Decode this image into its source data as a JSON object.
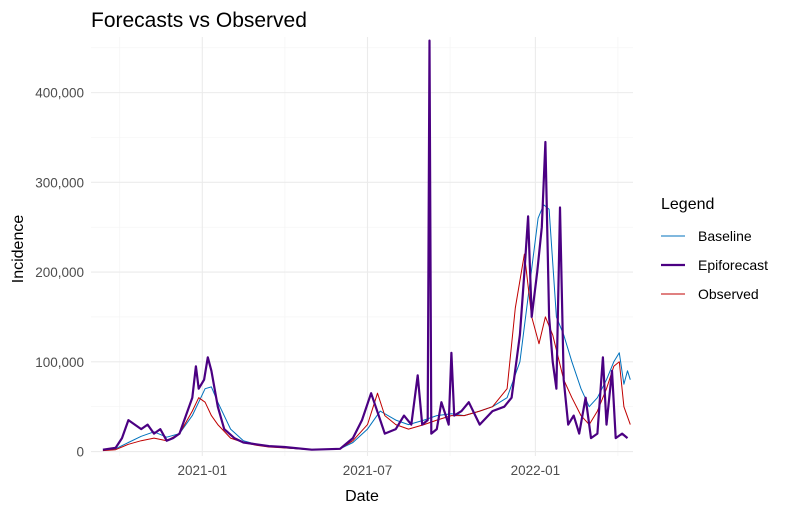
{
  "chart_data": {
    "type": "line",
    "title": "Forecasts vs Observed",
    "xlabel": "Date",
    "ylabel": "Incidence",
    "x_ticks": [
      "2021-01",
      "2021-07",
      "2022-01"
    ],
    "x_tick_dates": [
      "2021-01-01",
      "2021-07-01",
      "2022-01-01"
    ],
    "xlim": [
      "2020-09-01",
      "2022-04-18"
    ],
    "y_ticks": [
      0,
      100000,
      200000,
      300000,
      400000
    ],
    "y_tick_labels": [
      "0",
      "100,000",
      "200,000",
      "300,000",
      "400,000"
    ],
    "ylim": [
      -5000,
      462000
    ],
    "grid": true,
    "legend": {
      "title": "Legend",
      "position": "right"
    },
    "series": [
      {
        "name": "Baseline",
        "color": "#0072BD",
        "points": [
          [
            "2020-09-14",
            1500
          ],
          [
            "2020-09-28",
            3000
          ],
          [
            "2020-10-12",
            10000
          ],
          [
            "2020-10-26",
            17000
          ],
          [
            "2020-11-09",
            22000
          ],
          [
            "2020-11-23",
            16000
          ],
          [
            "2020-12-07",
            20000
          ],
          [
            "2020-12-21",
            40000
          ],
          [
            "2021-01-04",
            70000
          ],
          [
            "2021-01-11",
            72000
          ],
          [
            "2021-01-18",
            55000
          ],
          [
            "2021-02-01",
            25000
          ],
          [
            "2021-02-15",
            12000
          ],
          [
            "2021-03-01",
            8000
          ],
          [
            "2021-03-15",
            6000
          ],
          [
            "2021-04-01",
            4000
          ],
          [
            "2021-05-01",
            2000
          ],
          [
            "2021-06-01",
            3000
          ],
          [
            "2021-06-15",
            10000
          ],
          [
            "2021-07-01",
            25000
          ],
          [
            "2021-07-15",
            45000
          ],
          [
            "2021-08-01",
            35000
          ],
          [
            "2021-08-15",
            30000
          ],
          [
            "2021-09-01",
            35000
          ],
          [
            "2021-09-15",
            40000
          ],
          [
            "2021-10-01",
            42000
          ],
          [
            "2021-10-15",
            40000
          ],
          [
            "2021-11-01",
            45000
          ],
          [
            "2021-11-15",
            50000
          ],
          [
            "2021-12-01",
            60000
          ],
          [
            "2021-12-15",
            100000
          ],
          [
            "2021-12-25",
            180000
          ],
          [
            "2022-01-04",
            260000
          ],
          [
            "2022-01-10",
            275000
          ],
          [
            "2022-01-16",
            270000
          ],
          [
            "2022-01-24",
            150000
          ],
          [
            "2022-02-01",
            130000
          ],
          [
            "2022-02-10",
            100000
          ],
          [
            "2022-02-20",
            70000
          ],
          [
            "2022-03-01",
            50000
          ],
          [
            "2022-03-10",
            60000
          ],
          [
            "2022-03-20",
            80000
          ],
          [
            "2022-03-28",
            100000
          ],
          [
            "2022-04-03",
            110000
          ],
          [
            "2022-04-08",
            75000
          ],
          [
            "2022-04-12",
            90000
          ],
          [
            "2022-04-15",
            80000
          ]
        ]
      },
      {
        "name": "Epiforecast",
        "color": "#4B0082",
        "points": [
          [
            "2020-09-14",
            2000
          ],
          [
            "2020-09-28",
            4000
          ],
          [
            "2020-10-05",
            15000
          ],
          [
            "2020-10-12",
            35000
          ],
          [
            "2020-10-19",
            30000
          ],
          [
            "2020-10-26",
            25000
          ],
          [
            "2020-11-02",
            30000
          ],
          [
            "2020-11-09",
            20000
          ],
          [
            "2020-11-16",
            25000
          ],
          [
            "2020-11-23",
            12000
          ],
          [
            "2020-11-30",
            15000
          ],
          [
            "2020-12-07",
            20000
          ],
          [
            "2020-12-14",
            40000
          ],
          [
            "2020-12-21",
            60000
          ],
          [
            "2020-12-25",
            95000
          ],
          [
            "2020-12-28",
            70000
          ],
          [
            "2021-01-03",
            80000
          ],
          [
            "2021-01-07",
            105000
          ],
          [
            "2021-01-11",
            90000
          ],
          [
            "2021-01-18",
            50000
          ],
          [
            "2021-01-25",
            25000
          ],
          [
            "2021-02-05",
            15000
          ],
          [
            "2021-02-15",
            10000
          ],
          [
            "2021-03-01",
            8000
          ],
          [
            "2021-03-15",
            6000
          ],
          [
            "2021-04-01",
            5000
          ],
          [
            "2021-05-01",
            2000
          ],
          [
            "2021-06-01",
            3000
          ],
          [
            "2021-06-15",
            15000
          ],
          [
            "2021-06-25",
            35000
          ],
          [
            "2021-07-05",
            65000
          ],
          [
            "2021-07-10",
            50000
          ],
          [
            "2021-07-20",
            20000
          ],
          [
            "2021-08-01",
            25000
          ],
          [
            "2021-08-10",
            40000
          ],
          [
            "2021-08-18",
            30000
          ],
          [
            "2021-08-25",
            85000
          ],
          [
            "2021-08-30",
            30000
          ],
          [
            "2021-09-05",
            35000
          ],
          [
            "2021-09-07",
            458000
          ],
          [
            "2021-09-09",
            20000
          ],
          [
            "2021-09-15",
            25000
          ],
          [
            "2021-09-20",
            55000
          ],
          [
            "2021-09-28",
            30000
          ],
          [
            "2021-10-01",
            110000
          ],
          [
            "2021-10-04",
            40000
          ],
          [
            "2021-10-12",
            45000
          ],
          [
            "2021-10-20",
            55000
          ],
          [
            "2021-11-01",
            30000
          ],
          [
            "2021-11-15",
            45000
          ],
          [
            "2021-11-28",
            50000
          ],
          [
            "2021-12-06",
            60000
          ],
          [
            "2021-12-15",
            130000
          ],
          [
            "2021-12-20",
            200000
          ],
          [
            "2021-12-24",
            262000
          ],
          [
            "2021-12-28",
            150000
          ],
          [
            "2022-01-03",
            200000
          ],
          [
            "2022-01-08",
            250000
          ],
          [
            "2022-01-12",
            345000
          ],
          [
            "2022-01-16",
            150000
          ],
          [
            "2022-01-20",
            100000
          ],
          [
            "2022-01-24",
            70000
          ],
          [
            "2022-01-28",
            272000
          ],
          [
            "2022-02-01",
            80000
          ],
          [
            "2022-02-06",
            30000
          ],
          [
            "2022-02-12",
            40000
          ],
          [
            "2022-02-18",
            20000
          ],
          [
            "2022-02-25",
            60000
          ],
          [
            "2022-03-03",
            15000
          ],
          [
            "2022-03-10",
            20000
          ],
          [
            "2022-03-16",
            105000
          ],
          [
            "2022-03-20",
            30000
          ],
          [
            "2022-03-26",
            90000
          ],
          [
            "2022-03-30",
            15000
          ],
          [
            "2022-04-06",
            20000
          ],
          [
            "2022-04-12",
            15000
          ]
        ]
      },
      {
        "name": "Observed",
        "color": "#C00000",
        "points": [
          [
            "2020-09-14",
            1000
          ],
          [
            "2020-09-28",
            2000
          ],
          [
            "2020-10-12",
            8000
          ],
          [
            "2020-10-26",
            12000
          ],
          [
            "2020-11-09",
            15000
          ],
          [
            "2020-11-23",
            12000
          ],
          [
            "2020-12-07",
            20000
          ],
          [
            "2020-12-21",
            45000
          ],
          [
            "2020-12-28",
            60000
          ],
          [
            "2021-01-04",
            55000
          ],
          [
            "2021-01-11",
            40000
          ],
          [
            "2021-01-18",
            30000
          ],
          [
            "2021-02-01",
            15000
          ],
          [
            "2021-02-15",
            10000
          ],
          [
            "2021-03-01",
            7000
          ],
          [
            "2021-03-15",
            5000
          ],
          [
            "2021-04-01",
            4000
          ],
          [
            "2021-05-01",
            2000
          ],
          [
            "2021-06-01",
            3000
          ],
          [
            "2021-06-15",
            12000
          ],
          [
            "2021-07-01",
            30000
          ],
          [
            "2021-07-12",
            65000
          ],
          [
            "2021-07-20",
            40000
          ],
          [
            "2021-08-01",
            30000
          ],
          [
            "2021-08-15",
            25000
          ],
          [
            "2021-09-01",
            30000
          ],
          [
            "2021-09-15",
            35000
          ],
          [
            "2021-10-01",
            40000
          ],
          [
            "2021-10-15",
            40000
          ],
          [
            "2021-11-01",
            45000
          ],
          [
            "2021-11-15",
            50000
          ],
          [
            "2021-12-01",
            70000
          ],
          [
            "2021-12-10",
            160000
          ],
          [
            "2021-12-20",
            220000
          ],
          [
            "2021-12-28",
            150000
          ],
          [
            "2022-01-05",
            120000
          ],
          [
            "2022-01-12",
            150000
          ],
          [
            "2022-01-20",
            130000
          ],
          [
            "2022-02-01",
            80000
          ],
          [
            "2022-02-10",
            60000
          ],
          [
            "2022-02-20",
            40000
          ],
          [
            "2022-03-01",
            30000
          ],
          [
            "2022-03-10",
            45000
          ],
          [
            "2022-03-20",
            70000
          ],
          [
            "2022-03-28",
            95000
          ],
          [
            "2022-04-03",
            100000
          ],
          [
            "2022-04-08",
            50000
          ],
          [
            "2022-04-15",
            30000
          ]
        ]
      }
    ]
  }
}
